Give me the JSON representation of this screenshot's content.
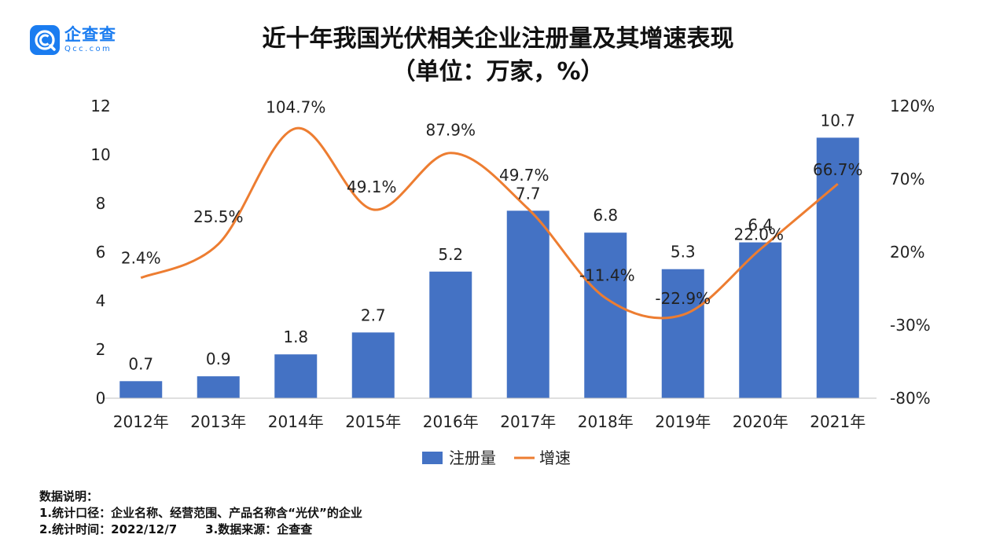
{
  "brand": {
    "name": "企查查",
    "domain": "Qcc.com",
    "color": "#1a7cf0"
  },
  "chart_data": {
    "type": "bar",
    "title": "近十年我国光伏相关企业注册量及其增速表现",
    "subtitle": "（单位：万家，%）",
    "categories": [
      "2012年",
      "2013年",
      "2014年",
      "2015年",
      "2016年",
      "2017年",
      "2018年",
      "2019年",
      "2020年",
      "2021年"
    ],
    "series": [
      {
        "name": "注册量",
        "type": "bar",
        "axis": "left",
        "color": "#4472c4",
        "values": [
          0.7,
          0.9,
          1.8,
          2.7,
          5.2,
          7.7,
          6.8,
          5.3,
          6.4,
          10.7
        ],
        "labels": [
          "0.7",
          "0.9",
          "1.8",
          "2.7",
          "5.2",
          "7.7",
          "6.8",
          "5.3",
          "6.4",
          "10.7"
        ]
      },
      {
        "name": "增速",
        "type": "line",
        "axis": "right",
        "color": "#ed7d31",
        "values": [
          2.4,
          25.5,
          104.7,
          49.1,
          87.9,
          49.7,
          -11.4,
          -22.9,
          22.0,
          66.7
        ],
        "labels": [
          "2.4%",
          "25.5%",
          "104.7%",
          "49.1%",
          "87.9%",
          "49.7%",
          "-11.4%",
          "-22.9%",
          "22.0%",
          "66.7%"
        ]
      }
    ],
    "y_left": {
      "min": 0,
      "max": 12,
      "ticks": [
        "0",
        "2",
        "4",
        "6",
        "8",
        "10",
        "12"
      ]
    },
    "y_right": {
      "min": -80,
      "max": 120,
      "ticks": [
        "-80%",
        "-30%",
        "20%",
        "70%",
        "120%"
      ]
    },
    "grid": false,
    "legend_position": "bottom-center"
  },
  "notes": {
    "heading": "数据说明：",
    "line1": "1.统计口径：企业名称、经营范围、产品名称含“光伏”的企业",
    "line2a": "2.统计时间：2022/12/7",
    "line2b": "3.数据来源：企查查"
  }
}
